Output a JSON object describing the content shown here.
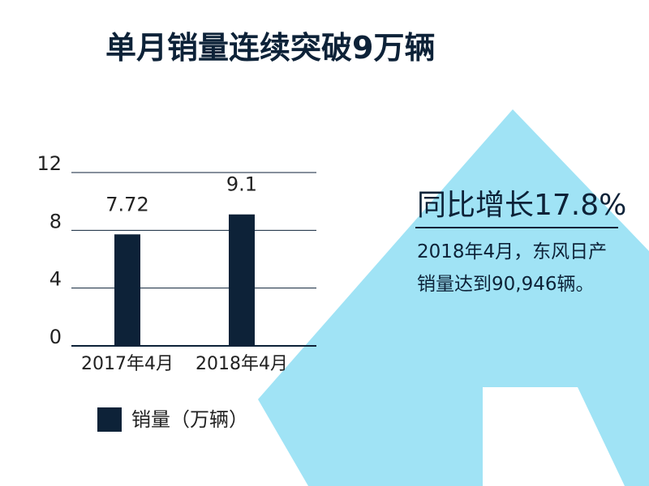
{
  "chart_data": {
    "type": "bar",
    "title": "单月销量连续突破9万辆",
    "categories": [
      "2017年4月",
      "2018年4月"
    ],
    "series": [
      {
        "name": "销量（万辆）",
        "color": "#0d2238",
        "values": [
          7.72,
          9.1
        ]
      }
    ],
    "ylim": [
      0,
      12
    ],
    "yticks": [
      0,
      4,
      8,
      12
    ],
    "grid": true,
    "annotations": [
      "同比增长17.8%",
      "2018年4月，东风日产销量达到90,946辆。"
    ]
  }
}
